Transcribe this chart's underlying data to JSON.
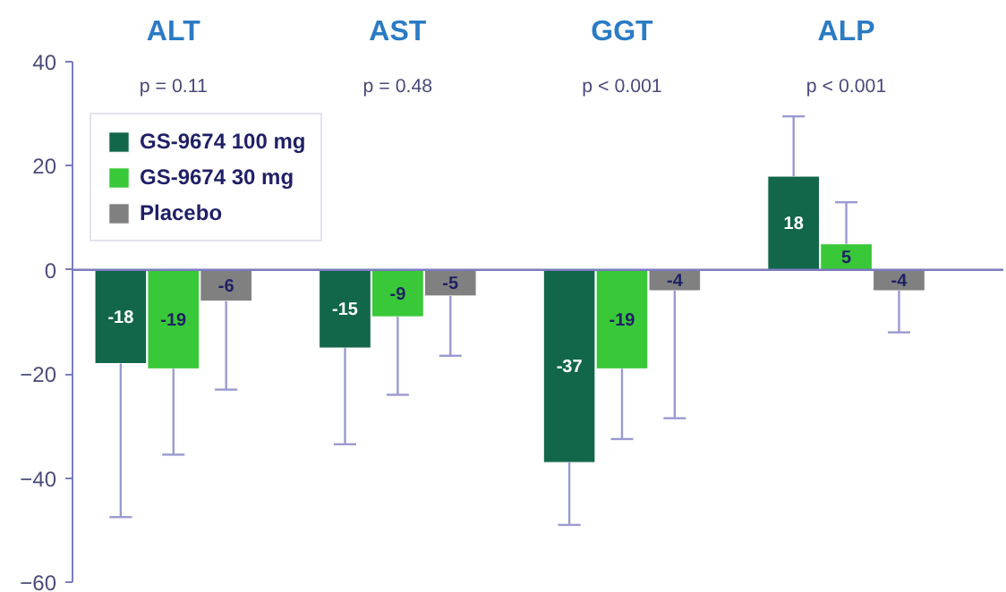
{
  "chart_data": {
    "type": "bar",
    "categories": [
      "ALT",
      "AST",
      "GGT",
      "ALP"
    ],
    "series": [
      {
        "name": "GS-9674 100 mg",
        "color": "#12664a",
        "values": [
          -18,
          -15,
          -37,
          18
        ],
        "errors": [
          [
            -47.5,
            -18
          ],
          [
            -33.5,
            -15
          ],
          [
            -49,
            -37
          ],
          [
            18,
            29.5
          ]
        ]
      },
      {
        "name": "GS-9674 30 mg",
        "color": "#38c838",
        "values": [
          -19,
          -9,
          -19,
          5
        ],
        "errors": [
          [
            -35.5,
            -19
          ],
          [
            -24,
            -9
          ],
          [
            -32.5,
            -19
          ],
          [
            5,
            13
          ]
        ]
      },
      {
        "name": "Placebo",
        "color": "#808080",
        "values": [
          -6,
          -5,
          -4,
          -4
        ],
        "errors": [
          [
            -23,
            -6
          ],
          [
            -16.5,
            -5
          ],
          [
            -28.5,
            -4
          ],
          [
            -12,
            -4
          ]
        ]
      }
    ],
    "annotations": [
      "p = 0.11",
      "p = 0.48",
      "p < 0.001",
      "p < 0.001"
    ],
    "ylim": [
      -60,
      40
    ],
    "yticks": [
      -60,
      -40,
      -20,
      0,
      20,
      40
    ],
    "ref_lines": [
      {
        "axis": "y",
        "value": 0,
        "color": "#7b7bc0"
      }
    ],
    "data_labels": true,
    "legend": "top left",
    "grid": false
  }
}
